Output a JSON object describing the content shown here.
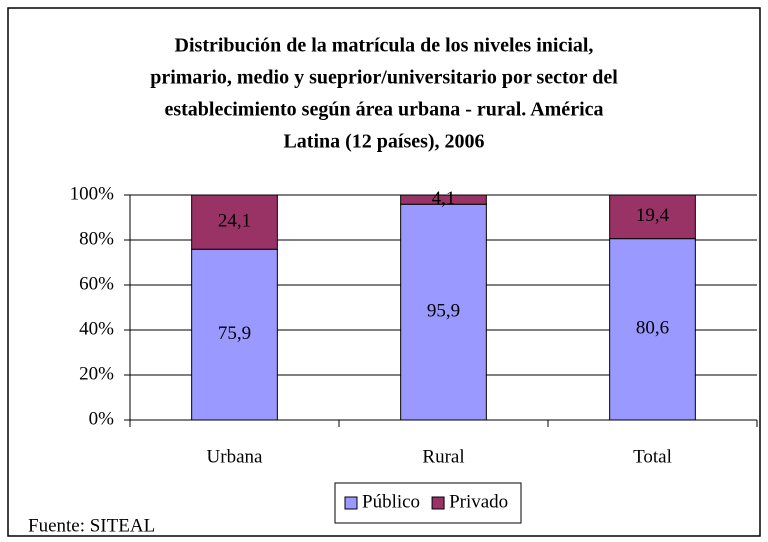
{
  "chart_data": {
    "type": "stacked_bar",
    "title": [
      "Distribución de la matrícula de los niveles inicial,",
      "primario, medio y sueprior/universitario por sector del",
      "establecimiento según área urbana - rural. América",
      "Latina (12 países), 2006"
    ],
    "categories": [
      "Urbana",
      "Rural",
      "Total"
    ],
    "series": [
      {
        "name": "Público",
        "color": "#9999ff",
        "values": [
          75.9,
          95.9,
          80.6
        ],
        "value_labels": [
          "75,9",
          "95,9",
          "80,6"
        ]
      },
      {
        "name": "Privado",
        "color": "#993366",
        "values": [
          24.1,
          4.1,
          19.4
        ],
        "value_labels": [
          "24,1",
          "4,1",
          "19,4"
        ]
      }
    ],
    "ylim": [
      0,
      100
    ],
    "yticks": [
      {
        "value": 0,
        "label": "0%"
      },
      {
        "value": 20,
        "label": "20%"
      },
      {
        "value": 40,
        "label": "40%"
      },
      {
        "value": 60,
        "label": "60%"
      },
      {
        "value": 80,
        "label": "80%"
      },
      {
        "value": 100,
        "label": "100%"
      }
    ],
    "grid": true,
    "legend": "bottom",
    "source": "Fuente: SITEAL"
  }
}
